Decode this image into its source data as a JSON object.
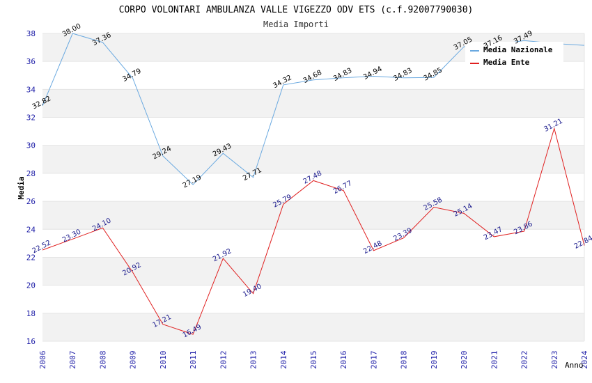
{
  "chart_data": {
    "type": "line",
    "title": "CORPO VOLONTARI AMBULANZA VALLE VIGEZZO ODV ETS (c.f.92007790030)",
    "subtitle": "Media Importi",
    "xlabel": "Anno",
    "ylabel": "Media",
    "ylim": [
      16,
      38
    ],
    "yticks": [
      "16",
      "18",
      "20",
      "22",
      "24",
      "26",
      "28",
      "30",
      "32",
      "34",
      "36",
      "38"
    ],
    "categories": [
      "2006",
      "2007",
      "2008",
      "2009",
      "2010",
      "2011",
      "2012",
      "2013",
      "2014",
      "2015",
      "2016",
      "2017",
      "2018",
      "2019",
      "2020",
      "2021",
      "2022",
      "2023",
      "2024"
    ],
    "grid": "horizontal bands",
    "legend_position": "top-right",
    "series": [
      {
        "name": "Media Nazionale",
        "color": "#6aa9e0",
        "values": [
          32.82,
          38.0,
          37.36,
          34.79,
          29.24,
          27.19,
          29.43,
          27.71,
          34.32,
          34.68,
          34.83,
          34.94,
          34.83,
          34.85,
          37.05,
          37.16,
          37.49,
          37.28,
          37.15
        ],
        "labels": [
          "32.82",
          "38.00",
          "37.36",
          "34.79",
          "29.24",
          "27.19",
          "29.43",
          "27.71",
          "34.32",
          "34.68",
          "34.83",
          "34.94",
          "34.83",
          "34.85",
          "37.05",
          "37.16",
          "37.49",
          "",
          ""
        ]
      },
      {
        "name": "Media Ente",
        "color": "#e02020",
        "values": [
          22.52,
          23.3,
          24.1,
          20.92,
          17.21,
          16.49,
          21.92,
          19.4,
          25.79,
          27.48,
          26.77,
          22.48,
          23.39,
          25.58,
          25.14,
          23.47,
          23.86,
          31.21,
          22.84
        ],
        "labels": [
          "22.52",
          "23.30",
          "24.10",
          "20.92",
          "17.21",
          "16.49",
          "21.92",
          "19.40",
          "25.79",
          "27.48",
          "26.77",
          "22.48",
          "23.39",
          "25.58",
          "25.14",
          "23.47",
          "23.86",
          "31.21",
          "22.84"
        ]
      }
    ]
  }
}
